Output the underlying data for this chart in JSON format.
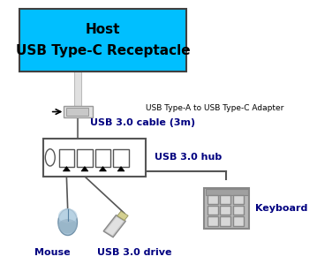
{
  "bg_color": "#ffffff",
  "host_fc": "#00bfff",
  "host_ec": "#404040",
  "host_label1": "Host",
  "host_label2": "USB Type-C Receptacle",
  "adapter_label": "USB Type-A to USB Type-C Adapter",
  "cable_label": "USB 3.0 cable (3m)",
  "hub_label": "USB 3.0 hub",
  "mouse_label": "Mouse",
  "drive_label": "USB 3.0 drive",
  "keyboard_label": "Keyboard",
  "label_color": "#000080",
  "label_fontsize": 8,
  "host_fontsize": 11
}
